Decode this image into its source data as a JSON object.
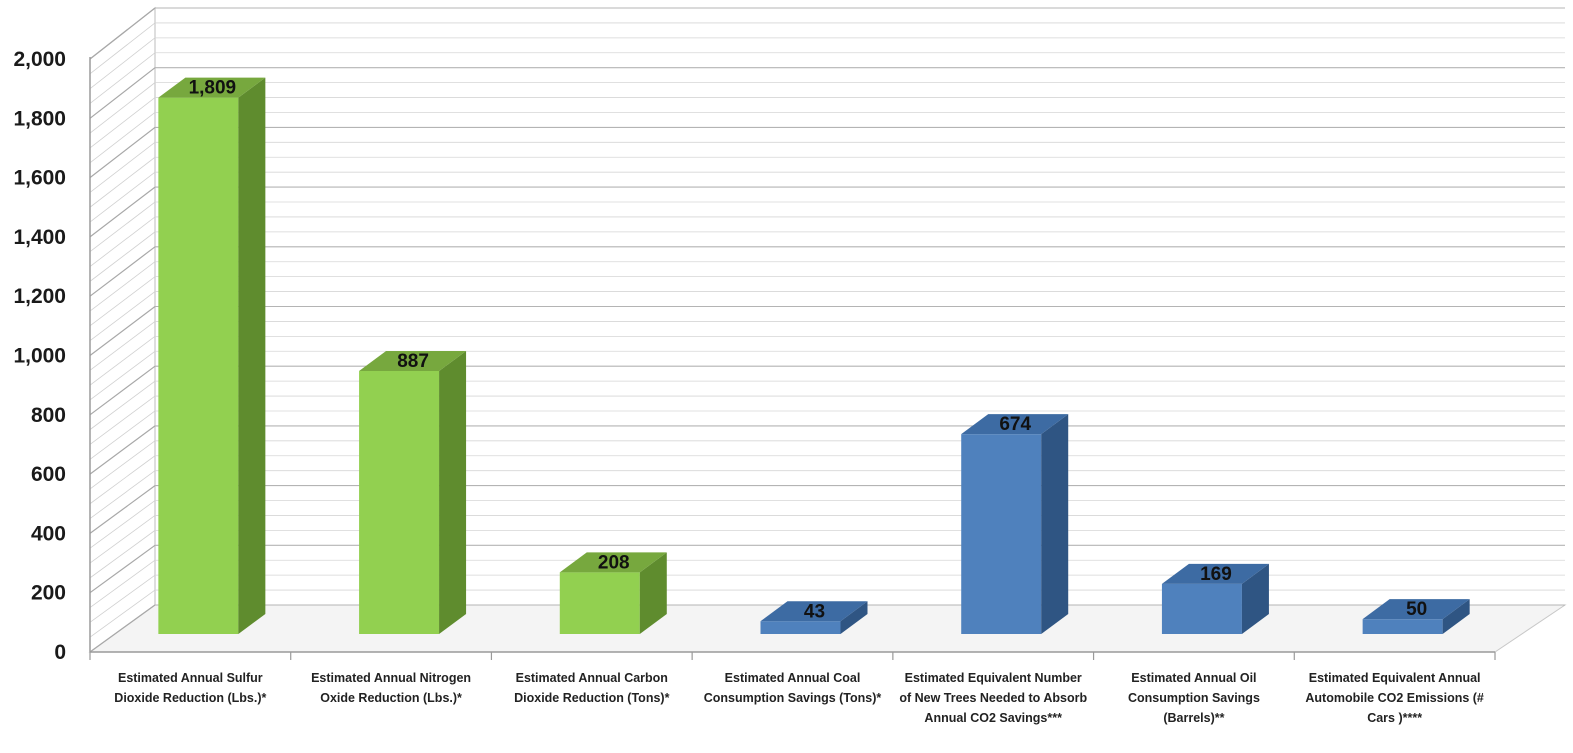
{
  "chart_data": {
    "type": "bar",
    "categories": [
      "Estimated Annual Sulfur Dioxide Reduction (Lbs.)*",
      "Estimated Annual Nitrogen Oxide Reduction (Lbs.)*",
      "Estimated Annual Carbon Dioxide Reduction (Tons)*",
      "Estimated Annual Coal Consumption Savings (Tons)*",
      "Estimated Equivalent Number of New Trees Needed to Absorb Annual CO2 Savings***",
      "Estimated Annual Oil Consumption Savings (Barrels)**",
      "Estimated Equivalent Annual Automobile CO2 Emissions            (# Cars )****"
    ],
    "values": [
      1809,
      887,
      208,
      43,
      674,
      169,
      50
    ],
    "data_labels": [
      "1,809",
      "887",
      "208",
      "43",
      "674",
      "169",
      "50"
    ],
    "bar_colors": [
      "#92d050",
      "#92d050",
      "#92d050",
      "#4f81bd",
      "#4f81bd",
      "#4f81bd",
      "#4f81bd"
    ],
    "side_colors": [
      "#5f8c2e",
      "#5f8c2e",
      "#5f8c2e",
      "#2f5583",
      "#2f5583",
      "#2f5583",
      "#2f5583"
    ],
    "top_colors": [
      "#77a83e",
      "#77a83e",
      "#77a83e",
      "#3d6ba3",
      "#3d6ba3",
      "#3d6ba3",
      "#3d6ba3"
    ],
    "yticks": [
      "0",
      "200",
      "400",
      "600",
      "800",
      "1,000",
      "1,200",
      "1,400",
      "1,600",
      "1,800",
      "2,000"
    ],
    "ylim": [
      0,
      2000
    ],
    "ytick_step": 200,
    "grid": true,
    "legend": false,
    "style": "3d-column"
  }
}
